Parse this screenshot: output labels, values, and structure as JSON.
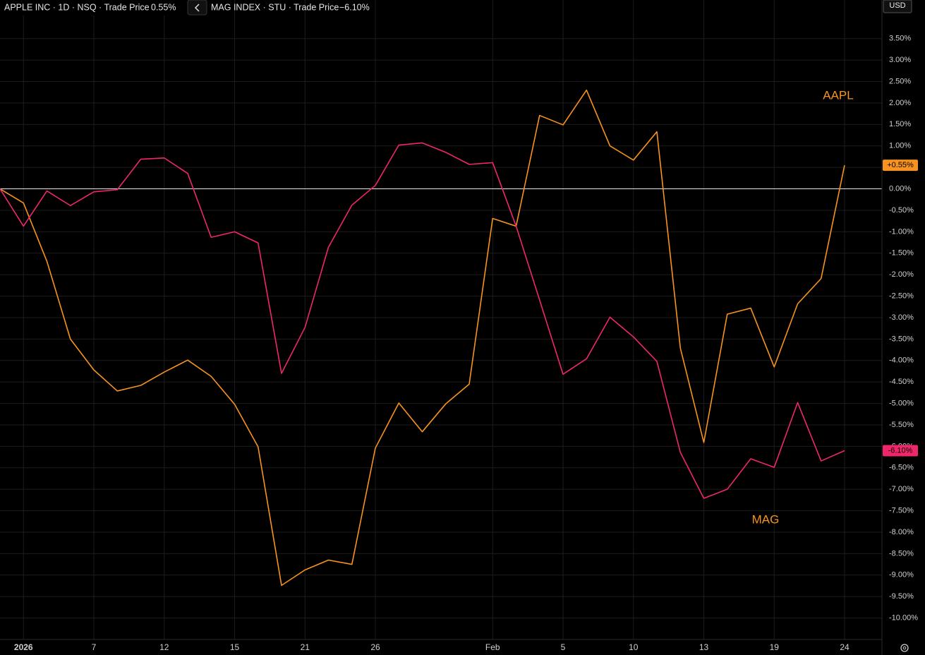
{
  "chart_data": {
    "type": "line",
    "currency": "USD",
    "annotations": [
      "AAPL",
      "MAG"
    ],
    "categories": [
      null,
      "2026",
      null,
      null,
      "7",
      null,
      null,
      "12",
      null,
      null,
      "15",
      null,
      null,
      "21",
      null,
      null,
      "26",
      null,
      null,
      null,
      null,
      "Feb",
      null,
      null,
      "5",
      null,
      null,
      "10",
      null,
      null,
      "13",
      null,
      null,
      "19",
      null,
      null,
      "24"
    ],
    "series": [
      {
        "name": "APPLE INC · 1D · NSQ · Trade Price",
        "change_label": "0.55%",
        "color": "#f7931e",
        "values": [
          0.0,
          -0.33,
          -1.69,
          -3.5,
          -4.22,
          -4.71,
          -4.58,
          -4.27,
          -3.99,
          -4.37,
          -5.02,
          -6.01,
          -9.24,
          -8.88,
          -8.65,
          -8.75,
          -6.04,
          -4.99,
          -5.66,
          -5.01,
          -4.55,
          -0.69,
          -0.87,
          1.71,
          1.49,
          2.3,
          1.0,
          0.67,
          1.33,
          -3.71,
          -5.91,
          -2.92,
          -2.78,
          -4.15,
          -2.68,
          -2.09,
          0.55
        ],
        "value_labels": [
          null,
          null,
          null,
          null,
          null,
          null,
          null,
          null,
          null,
          null,
          null,
          null,
          null,
          null,
          null,
          null,
          null,
          null,
          null,
          null,
          null,
          null,
          null,
          null,
          null,
          null,
          null,
          null,
          null,
          null,
          null,
          null,
          null,
          null,
          null,
          null,
          "+0.55%"
        ]
      },
      {
        "name": "MAG INDEX · STU · Trade Price",
        "change_label": "−6.10%",
        "color": "#f0266b",
        "values": [
          0.0,
          -0.87,
          -0.05,
          -0.39,
          -0.07,
          -0.02,
          0.69,
          0.72,
          0.36,
          -1.13,
          -1.0,
          -1.26,
          -4.3,
          -3.23,
          -1.36,
          -0.38,
          0.08,
          1.02,
          1.07,
          0.85,
          0.57,
          0.61,
          -0.87,
          -2.59,
          -4.32,
          -3.96,
          -2.99,
          -3.45,
          -4.02,
          -6.14,
          -7.21,
          -7.0,
          -6.29,
          -6.49,
          -4.98,
          -6.34,
          -6.1
        ],
        "value_labels": [
          null,
          null,
          null,
          null,
          null,
          null,
          null,
          null,
          null,
          null,
          null,
          null,
          null,
          null,
          null,
          null,
          null,
          null,
          null,
          null,
          null,
          null,
          null,
          null,
          null,
          null,
          null,
          null,
          null,
          null,
          null,
          null,
          null,
          null,
          null,
          null,
          "-6.10%"
        ]
      }
    ],
    "ylim": [
      -10.5,
      4.4
    ],
    "yticks": [
      {
        "value": 3.5,
        "label": "3.50%"
      },
      {
        "value": 3.0,
        "label": "3.00%"
      },
      {
        "value": 2.5,
        "label": "2.50%"
      },
      {
        "value": 2.0,
        "label": "2.00%"
      },
      {
        "value": 1.5,
        "label": "1.50%"
      },
      {
        "value": 1.0,
        "label": "1.00%"
      },
      {
        "value": 0.5,
        "label": "0.50%"
      },
      {
        "value": 0.0,
        "label": "0.00%"
      },
      {
        "value": -0.5,
        "label": "-0.50%"
      },
      {
        "value": -1.0,
        "label": "-1.00%"
      },
      {
        "value": -1.5,
        "label": "-1.50%"
      },
      {
        "value": -2.0,
        "label": "-2.00%"
      },
      {
        "value": -2.5,
        "label": "-2.50%"
      },
      {
        "value": -3.0,
        "label": "-3.00%"
      },
      {
        "value": -3.5,
        "label": "-3.50%"
      },
      {
        "value": -4.0,
        "label": "-4.00%"
      },
      {
        "value": -4.5,
        "label": "-4.50%"
      },
      {
        "value": -5.0,
        "label": "-5.00%"
      },
      {
        "value": -5.5,
        "label": "-5.50%"
      },
      {
        "value": -6.0,
        "label": "-6.00%"
      },
      {
        "value": -6.5,
        "label": "-6.50%"
      },
      {
        "value": -7.0,
        "label": "-7.00%"
      },
      {
        "value": -7.5,
        "label": "-7.50%"
      },
      {
        "value": -8.0,
        "label": "-8.00%"
      },
      {
        "value": -8.5,
        "label": "-8.50%"
      },
      {
        "value": -9.0,
        "label": "-9.00%"
      },
      {
        "value": -9.5,
        "label": "-9.50%"
      },
      {
        "value": -10.0,
        "label": "-10.00%"
      }
    ],
    "reference_line": 0,
    "grid": true
  }
}
